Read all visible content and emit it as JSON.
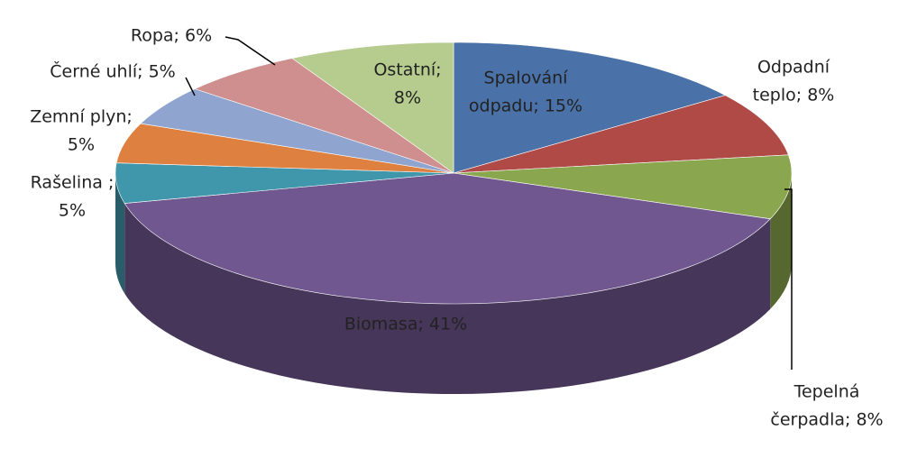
{
  "chart_data": {
    "type": "pie3d",
    "categories": [
      "Spalování odpadu",
      "Odpadní teplo",
      "Tepelná čerpadla",
      "Biomasa",
      "Rašelina",
      "Zemní plyn",
      "Černé uhlí",
      "Ropa",
      "Ostatní"
    ],
    "values": [
      15,
      8,
      8,
      41,
      5,
      5,
      5,
      6,
      8
    ],
    "value_labels": [
      [
        "Spalování",
        "odpadu; 15%"
      ],
      [
        "Odpadní",
        "teplo; 8%"
      ],
      [
        "Tepelná",
        "čerpadla; 8%"
      ],
      [
        "Biomasa;  41%"
      ],
      [
        "Rašelina ;",
        "5%"
      ],
      [
        "Zemní plyn;",
        "5%"
      ],
      [
        "Černé uhlí; 5%"
      ],
      [
        "Ropa; 6%"
      ],
      [
        "Ostatní;",
        "8%"
      ]
    ],
    "colors": [
      "#4a72a8",
      "#b04a46",
      "#8aa64e",
      "#71578f",
      "#4096aa",
      "#dd8040",
      "#8fa5cf",
      "#d08f8f",
      "#b5cc8e"
    ]
  }
}
